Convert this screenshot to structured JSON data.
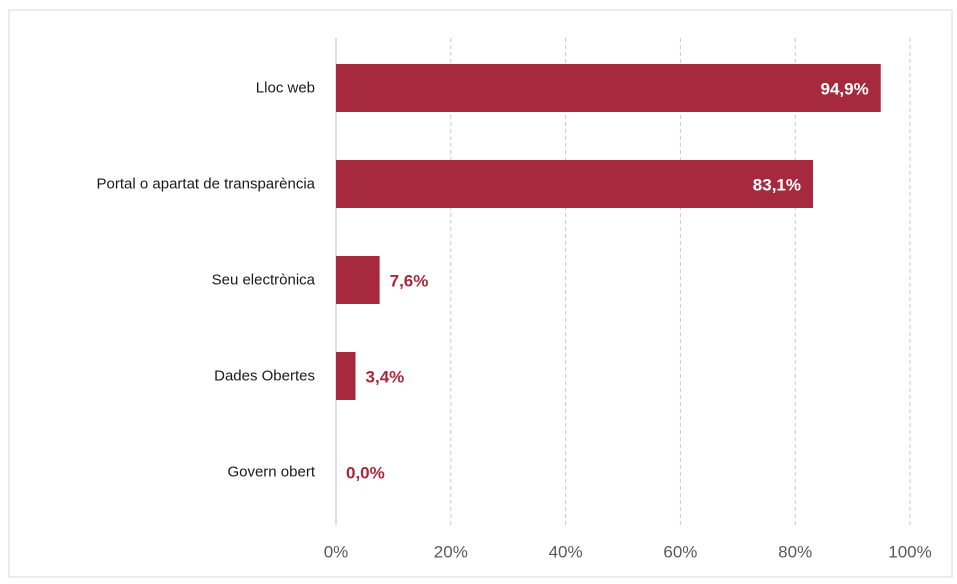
{
  "chart_data": {
    "type": "bar",
    "orientation": "horizontal",
    "categories": [
      "Lloc web",
      "Portal o apartat de transparència",
      "Seu electrònica",
      "Dades Obertes",
      "Govern obert"
    ],
    "values": [
      94.9,
      83.1,
      7.6,
      3.4,
      0.0
    ],
    "data_labels": [
      "94,9%",
      "83,1%",
      "7,6%",
      "3,4%",
      "0,0%"
    ],
    "xlim": [
      0,
      100
    ],
    "x_ticks": [
      0,
      20,
      40,
      60,
      80,
      100
    ],
    "x_tick_labels": [
      "0%",
      "20%",
      "40%",
      "60%",
      "80%",
      "100%"
    ],
    "grid": "vertical dashed",
    "legend": "none",
    "bar_color": "#a6293d",
    "grid_color": "#c8c8c8",
    "frame_color": "#d9d9d9",
    "category_label_color": "#1a1a1a",
    "tick_label_color": "#595959",
    "inside_label_color": "#ffffff"
  }
}
